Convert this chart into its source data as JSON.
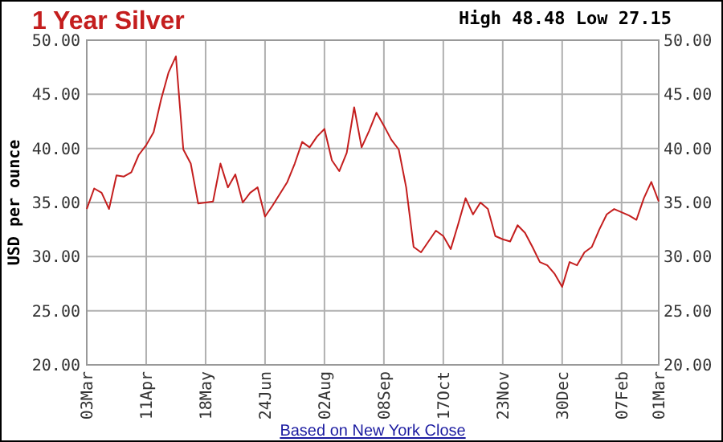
{
  "chart_data": {
    "type": "line",
    "title": "1 Year Silver",
    "ylabel": "USD per ounce",
    "annotations": [
      "High 48.48 Low 27.15",
      "Based on New York Close"
    ],
    "categories": [
      "03Mar",
      null,
      null,
      null,
      null,
      null,
      null,
      null,
      "11Apr",
      null,
      null,
      null,
      null,
      null,
      null,
      null,
      "18May",
      null,
      null,
      null,
      null,
      null,
      null,
      null,
      "24Jun",
      null,
      null,
      null,
      null,
      null,
      null,
      null,
      "02Aug",
      null,
      null,
      null,
      null,
      null,
      null,
      null,
      "08Sep",
      null,
      null,
      null,
      null,
      null,
      null,
      null,
      "17Oct",
      null,
      null,
      null,
      null,
      null,
      null,
      null,
      "23Nov",
      null,
      null,
      null,
      null,
      null,
      null,
      null,
      "30Dec",
      null,
      null,
      null,
      null,
      null,
      null,
      null,
      "07Feb",
      null,
      null,
      null,
      null,
      "01Mar"
    ],
    "series": [
      {
        "color": "#c41e1e",
        "values": [
          34.4,
          36.3,
          35.9,
          34.4,
          37.5,
          37.4,
          37.8,
          39.4,
          40.3,
          41.5,
          44.5,
          47.0,
          48.5,
          39.9,
          38.6,
          34.9,
          35.0,
          35.1,
          38.6,
          36.4,
          37.6,
          35.0,
          35.9,
          36.4,
          33.7,
          34.7,
          35.8,
          36.9,
          38.6,
          40.6,
          40.1,
          41.1,
          41.8,
          38.9,
          37.9,
          39.6,
          43.8,
          40.1,
          41.6,
          43.3,
          42.1,
          40.8,
          39.9,
          36.4,
          30.9,
          30.4,
          31.4,
          32.4,
          31.9,
          30.7,
          33.0,
          35.4,
          33.9,
          35.0,
          34.4,
          31.9,
          31.6,
          31.4,
          32.9,
          32.2,
          30.9,
          29.5,
          29.2,
          28.4,
          27.2,
          29.5,
          29.2,
          30.4,
          30.9,
          32.5,
          33.9,
          34.4,
          34.1,
          33.8,
          33.4,
          35.4,
          36.9,
          35.1
        ]
      }
    ],
    "ylim": [
      20,
      50
    ],
    "yticks": [
      {
        "value": 20,
        "label": "20.00"
      },
      {
        "value": 25,
        "label": "25.00"
      },
      {
        "value": 30,
        "label": "30.00"
      },
      {
        "value": 35,
        "label": "35.00"
      },
      {
        "value": 40,
        "label": "40.00"
      },
      {
        "value": 45,
        "label": "45.00"
      },
      {
        "value": 50,
        "label": "50.00"
      }
    ],
    "y2lim": [
      20,
      50
    ],
    "y2ticks": [
      {
        "value": 20,
        "label": "20.00"
      },
      {
        "value": 25,
        "label": "25.00"
      },
      {
        "value": 30,
        "label": "30.00"
      },
      {
        "value": 35,
        "label": "35.00"
      },
      {
        "value": 40,
        "label": "40.00"
      },
      {
        "value": 45,
        "label": "45.00"
      },
      {
        "value": 50,
        "label": "50.00"
      }
    ],
    "grid": true
  }
}
